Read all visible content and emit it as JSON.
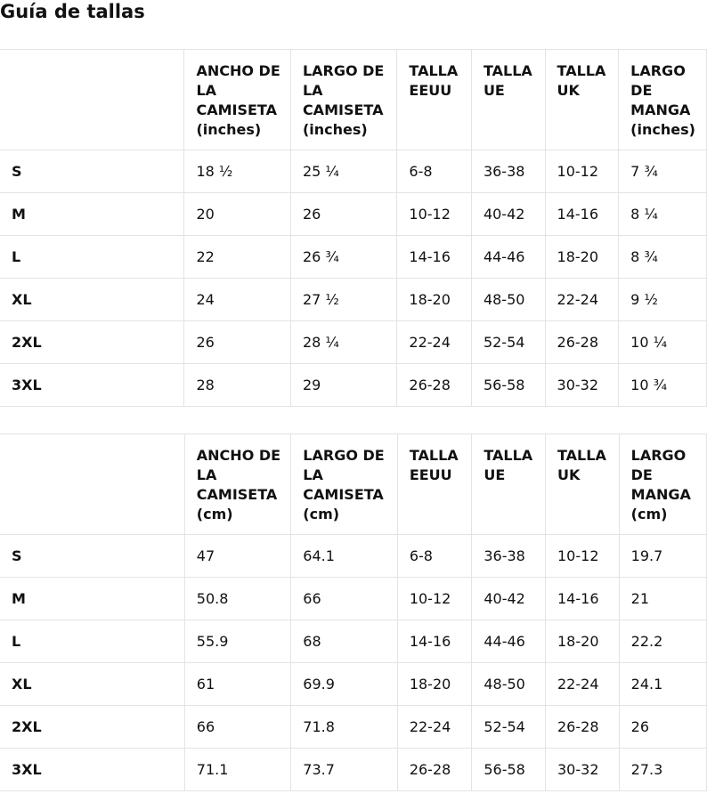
{
  "title": "Guía de tallas",
  "tables": [
    {
      "headers": [
        "",
        "ANCHO DE LA CAMISETA (inches)",
        "LARGO DE LA CAMISETA (inches)",
        "TALLA EEUU",
        "TALLA UE",
        "TALLA UK",
        "LARGO DE MANGA (inches)"
      ],
      "rows": [
        [
          "S",
          "18 ½",
          "25 ¼",
          "6-8",
          "36-38",
          "10-12",
          "7 ¾"
        ],
        [
          "M",
          "20",
          "26",
          "10-12",
          "40-42",
          "14-16",
          "8 ¼"
        ],
        [
          "L",
          "22",
          "26 ¾",
          "14-16",
          "44-46",
          "18-20",
          "8 ¾"
        ],
        [
          "XL",
          "24",
          "27 ½",
          "18-20",
          "48-50",
          "22-24",
          "9 ½"
        ],
        [
          "2XL",
          "26",
          "28 ¼",
          "22-24",
          "52-54",
          "26-28",
          "10 ¼"
        ],
        [
          "3XL",
          "28",
          "29",
          "26-28",
          "56-58",
          "30-32",
          "10 ¾"
        ]
      ]
    },
    {
      "headers": [
        "",
        "ANCHO DE LA CAMISETA (cm)",
        "LARGO DE LA CAMISETA (cm)",
        "TALLA EEUU",
        "TALLA UE",
        "TALLA UK",
        "LARGO DE MANGA (cm)"
      ],
      "rows": [
        [
          "S",
          "47",
          "64.1",
          "6-8",
          "36-38",
          "10-12",
          "19.7"
        ],
        [
          "M",
          "50.8",
          "66",
          "10-12",
          "40-42",
          "14-16",
          "21"
        ],
        [
          "L",
          "55.9",
          "68",
          "14-16",
          "44-46",
          "18-20",
          "22.2"
        ],
        [
          "XL",
          "61",
          "69.9",
          "18-20",
          "48-50",
          "22-24",
          "24.1"
        ],
        [
          "2XL",
          "66",
          "71.8",
          "22-24",
          "52-54",
          "26-28",
          "26"
        ],
        [
          "3XL",
          "71.1",
          "73.7",
          "26-28",
          "56-58",
          "30-32",
          "27.3"
        ]
      ]
    }
  ]
}
